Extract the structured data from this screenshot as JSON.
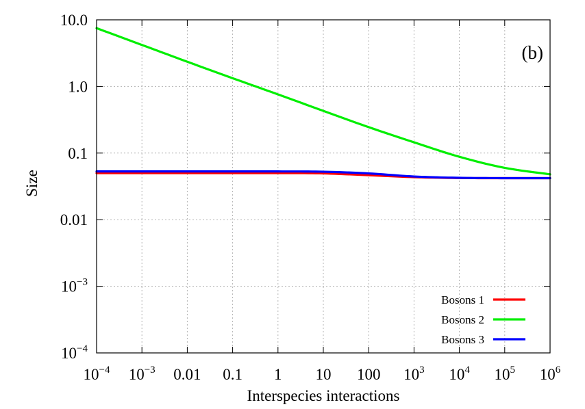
{
  "chart_data": {
    "type": "line",
    "panel_label": "(b)",
    "xlabel": "Interspecies interactions",
    "ylabel": "Size",
    "x_scale": "log",
    "y_scale": "log",
    "xlim": [
      0.0001,
      1000000
    ],
    "ylim": [
      0.0001,
      10
    ],
    "x_ticks": [
      {
        "value": 0.0001,
        "base": "10",
        "exp": "−4"
      },
      {
        "value": 0.001,
        "base": "10",
        "exp": "−3"
      },
      {
        "value": 0.01,
        "label": "0.01"
      },
      {
        "value": 0.1,
        "label": "0.1"
      },
      {
        "value": 1,
        "label": "1"
      },
      {
        "value": 10,
        "label": "10"
      },
      {
        "value": 100,
        "label": "100"
      },
      {
        "value": 1000,
        "base": "10",
        "exp": "3"
      },
      {
        "value": 10000,
        "base": "10",
        "exp": "4"
      },
      {
        "value": 100000,
        "base": "10",
        "exp": "5"
      },
      {
        "value": 1000000,
        "base": "10",
        "exp": "6"
      }
    ],
    "y_ticks": [
      {
        "value": 0.0001,
        "base": "10",
        "exp": "−4"
      },
      {
        "value": 0.001,
        "base": "10",
        "exp": "−3"
      },
      {
        "value": 0.01,
        "label": "0.01"
      },
      {
        "value": 0.1,
        "label": "0.1"
      },
      {
        "value": 1,
        "label": "1.0"
      },
      {
        "value": 10,
        "label": "10.0"
      }
    ],
    "grid": true,
    "legend_position": "bottom-right",
    "series": [
      {
        "name": "Bosons 1",
        "color": "#ff0000",
        "x": [
          0.0001,
          0.001,
          0.01,
          0.1,
          1,
          10,
          100,
          1000,
          10000,
          100000,
          1000000
        ],
        "y": [
          0.05,
          0.05,
          0.05,
          0.05,
          0.05,
          0.0495,
          0.0465,
          0.0435,
          0.0422,
          0.042,
          0.042
        ]
      },
      {
        "name": "Bosons 2",
        "color": "#00ee00",
        "x": [
          0.0001,
          0.001,
          0.01,
          0.1,
          1,
          10,
          100,
          1000,
          10000,
          100000,
          1000000
        ],
        "y": [
          7.5,
          4.2,
          2.35,
          1.33,
          0.76,
          0.43,
          0.245,
          0.145,
          0.088,
          0.06,
          0.048
        ]
      },
      {
        "name": "Bosons 3",
        "color": "#0000ff",
        "x": [
          0.0001,
          0.001,
          0.01,
          0.1,
          1,
          10,
          100,
          1000,
          10000,
          100000,
          1000000
        ],
        "y": [
          0.053,
          0.053,
          0.053,
          0.053,
          0.053,
          0.0525,
          0.0495,
          0.0445,
          0.0425,
          0.042,
          0.042
        ]
      }
    ]
  }
}
